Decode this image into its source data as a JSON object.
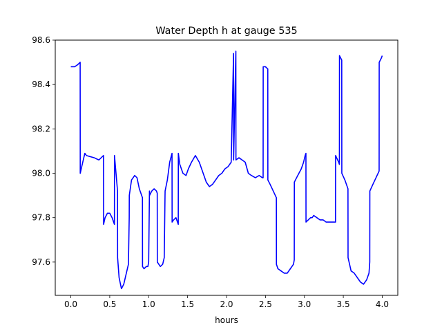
{
  "chart_data": {
    "type": "line",
    "title": "Water Depth h at gauge 535",
    "xlabel": "hours",
    "ylabel": "",
    "xlim": [
      -0.2,
      4.2
    ],
    "ylim": [
      97.45,
      98.6
    ],
    "xticks": [
      0.0,
      0.5,
      1.0,
      1.5,
      2.0,
      2.5,
      3.0,
      3.5,
      4.0
    ],
    "xtick_labels": [
      "0.0",
      "0.5",
      "1.0",
      "1.5",
      "2.0",
      "2.5",
      "3.0",
      "3.5",
      "4.0"
    ],
    "yticks": [
      97.6,
      97.8,
      98.0,
      98.2,
      98.4,
      98.6
    ],
    "ytick_labels": [
      "97.6",
      "97.8",
      "98.0",
      "98.2",
      "98.4",
      "98.6"
    ],
    "grid": false,
    "legend": "none",
    "series": [
      {
        "color": "#0000ff",
        "x": [
          0.0,
          0.05,
          0.09,
          0.12,
          0.121,
          0.14,
          0.18,
          0.2,
          0.25,
          0.3,
          0.36,
          0.39,
          0.42,
          0.421,
          0.44,
          0.47,
          0.5,
          0.53,
          0.56,
          0.561,
          0.6,
          0.601,
          0.62,
          0.65,
          0.68,
          0.7,
          0.74,
          0.75,
          0.751,
          0.78,
          0.82,
          0.85,
          0.88,
          0.92,
          0.921,
          0.94,
          0.97,
          0.99,
          1.0,
          1.01,
          1.011,
          1.04,
          1.07,
          1.1,
          1.11,
          1.111,
          1.15,
          1.18,
          1.2,
          1.21,
          1.211,
          1.24,
          1.27,
          1.3,
          1.301,
          1.32,
          1.35,
          1.38,
          1.381,
          1.4,
          1.44,
          1.48,
          1.51,
          1.55,
          1.6,
          1.65,
          1.7,
          1.74,
          1.78,
          1.82,
          1.86,
          1.9,
          1.94,
          1.98,
          2.02,
          2.06,
          2.09,
          2.091,
          2.12,
          2.121,
          2.16,
          2.2,
          2.24,
          2.28,
          2.32,
          2.37,
          2.42,
          2.46,
          2.47,
          2.471,
          2.5,
          2.53,
          2.531,
          2.56,
          2.6,
          2.64,
          2.641,
          2.66,
          2.7,
          2.74,
          2.78,
          2.82,
          2.86,
          2.87,
          2.871,
          2.9,
          2.93,
          2.96,
          2.99,
          3.01,
          3.02,
          3.021,
          3.05,
          3.08,
          3.1,
          3.12,
          3.16,
          3.2,
          3.24,
          3.28,
          3.32,
          3.36,
          3.4,
          3.401,
          3.44,
          3.45,
          3.451,
          3.48,
          3.481,
          3.52,
          3.56,
          3.561,
          3.6,
          3.64,
          3.68,
          3.72,
          3.76,
          3.8,
          3.83,
          3.84,
          3.841,
          3.88,
          3.92,
          3.96,
          3.961,
          3.99,
          4.0
        ],
        "y": [
          98.48,
          98.48,
          98.49,
          98.5,
          98.0,
          98.03,
          98.09,
          98.08,
          98.075,
          98.07,
          98.06,
          98.07,
          98.08,
          97.77,
          97.8,
          97.82,
          97.82,
          97.8,
          97.77,
          98.08,
          97.92,
          97.62,
          97.53,
          97.48,
          97.5,
          97.53,
          97.59,
          97.8,
          97.9,
          97.97,
          97.99,
          97.98,
          97.93,
          97.89,
          97.58,
          97.57,
          97.58,
          97.58,
          97.6,
          97.92,
          97.9,
          97.92,
          97.93,
          97.92,
          97.91,
          97.6,
          97.58,
          97.59,
          97.62,
          97.9,
          97.92,
          97.97,
          98.05,
          98.09,
          97.78,
          97.79,
          97.8,
          97.77,
          98.09,
          98.04,
          98.0,
          97.99,
          98.02,
          98.05,
          98.08,
          98.05,
          98.0,
          97.96,
          97.94,
          97.95,
          97.97,
          97.99,
          98.0,
          98.02,
          98.03,
          98.05,
          98.54,
          98.06,
          98.55,
          98.06,
          98.07,
          98.06,
          98.05,
          98.0,
          97.99,
          97.98,
          97.99,
          97.98,
          97.98,
          98.48,
          98.48,
          98.47,
          97.97,
          97.95,
          97.92,
          97.89,
          97.59,
          97.57,
          97.56,
          97.55,
          97.55,
          97.57,
          97.59,
          97.61,
          97.96,
          97.98,
          98.0,
          98.02,
          98.05,
          98.08,
          98.09,
          97.78,
          97.79,
          97.8,
          97.8,
          97.81,
          97.8,
          97.79,
          97.79,
          97.78,
          97.78,
          97.78,
          97.78,
          98.08,
          98.05,
          98.04,
          98.53,
          98.51,
          98.0,
          97.97,
          97.93,
          97.62,
          97.56,
          97.55,
          97.53,
          97.51,
          97.5,
          97.52,
          97.55,
          97.6,
          97.92,
          97.95,
          97.98,
          98.01,
          98.5,
          98.52,
          98.53
        ]
      }
    ]
  }
}
